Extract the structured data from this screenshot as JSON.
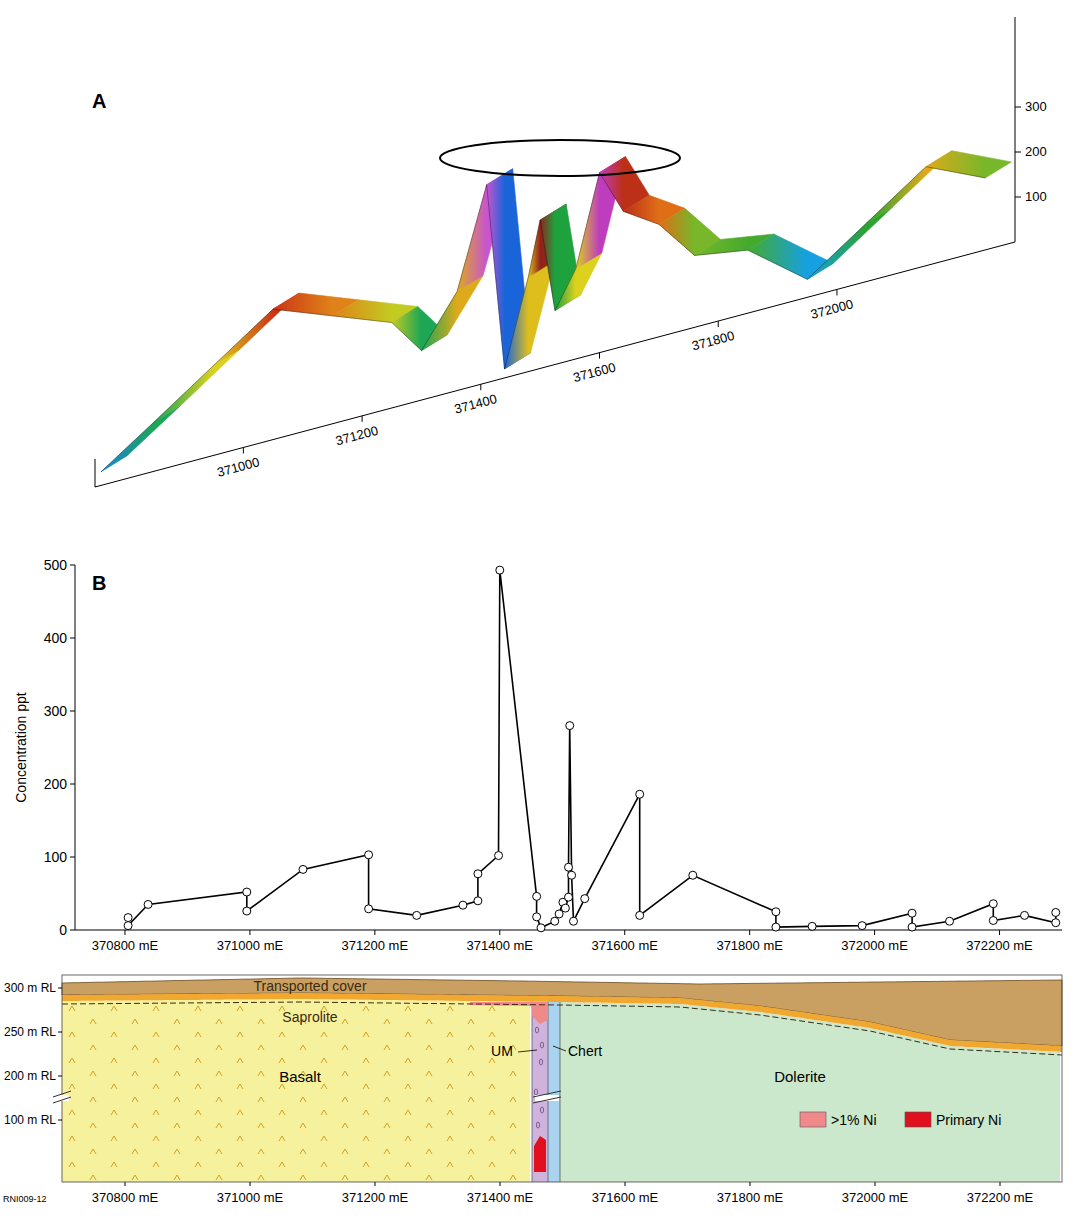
{
  "chart_data": [
    {
      "type": "surface",
      "title": "A",
      "x": [
        370760,
        370850,
        370950,
        371050,
        371150,
        371250,
        371300,
        371360,
        371410,
        371440,
        371480,
        371500,
        371525,
        371560,
        371600,
        371640,
        371700,
        371760,
        371850,
        371950,
        372050,
        372150,
        372250
      ],
      "values": [
        30,
        110,
        200,
        290,
        240,
        190,
        110,
        220,
        440,
        20,
        210,
        330,
        120,
        200,
        400,
        300,
        250,
        160,
        140,
        40,
        130,
        220,
        160
      ],
      "xlim": [
        370750,
        372300
      ],
      "xticks": [
        371000,
        371200,
        371400,
        371600,
        371800,
        372000
      ],
      "ylim": [
        0,
        500
      ],
      "yticks": [
        100,
        200,
        300
      ]
    },
    {
      "type": "line",
      "title": "B",
      "y_label": "Concentration ppt",
      "color": "#000000",
      "marker": "circle",
      "x": [
        370805,
        370805,
        370837,
        370995,
        370995,
        371085,
        371190,
        371190,
        371267,
        371341,
        371365,
        371365,
        371398,
        371400,
        371459,
        371459,
        371466,
        371488,
        371495,
        371501,
        371505,
        371510,
        371510,
        371512,
        371515,
        371518,
        371536,
        371624,
        371624,
        371709,
        371842,
        371842,
        371900,
        371980,
        372060,
        372060,
        372120,
        372190,
        372190,
        372240,
        372290,
        372290
      ],
      "values": [
        17,
        6,
        35,
        52,
        26,
        83,
        103,
        29,
        20,
        34,
        40,
        77,
        102,
        493,
        46,
        18,
        3,
        12,
        22,
        38,
        30,
        45,
        86,
        280,
        75,
        12,
        43,
        186,
        20,
        75,
        25,
        4,
        5,
        6,
        23,
        4,
        12,
        36,
        13,
        20,
        10,
        24
      ],
      "xlim": [
        370720,
        372300
      ],
      "xticks": [
        {
          "value": 370800,
          "label": "370800 mE"
        },
        {
          "value": 371000,
          "label": "371000 mE"
        },
        {
          "value": 371200,
          "label": "371200 mE"
        },
        {
          "value": 371400,
          "label": "371400 mE"
        },
        {
          "value": 371600,
          "label": "371600 mE"
        },
        {
          "value": 371800,
          "label": "371800 mE"
        },
        {
          "value": 372000,
          "label": "372000 mE"
        },
        {
          "value": 372200,
          "label": "372200 mE"
        }
      ],
      "ylim": [
        0,
        500
      ],
      "yticks": [
        0,
        100,
        200,
        300,
        400,
        500
      ]
    }
  ],
  "section": {
    "rl_labels": [
      "300 m RL",
      "250 m RL",
      "200 m RL",
      "100 m RL"
    ],
    "x_labels": [
      "370800 mE",
      "371000 mE",
      "371200 mE",
      "371400 mE",
      "371600 mE",
      "371800 mE",
      "372000 mE",
      "372200 mE"
    ],
    "labels": {
      "cover": "Transported cover",
      "saprolite": "Saprolite",
      "basalt": "Basalt",
      "um": "UM",
      "chert": "Chert",
      "dolerite": "Dolerite"
    },
    "legend": [
      {
        "label": ">1% Ni",
        "color": "#f08a8a"
      },
      {
        "label": "Primary Ni",
        "color": "#e0101e"
      }
    ],
    "figure_id": "RNI009-12"
  }
}
